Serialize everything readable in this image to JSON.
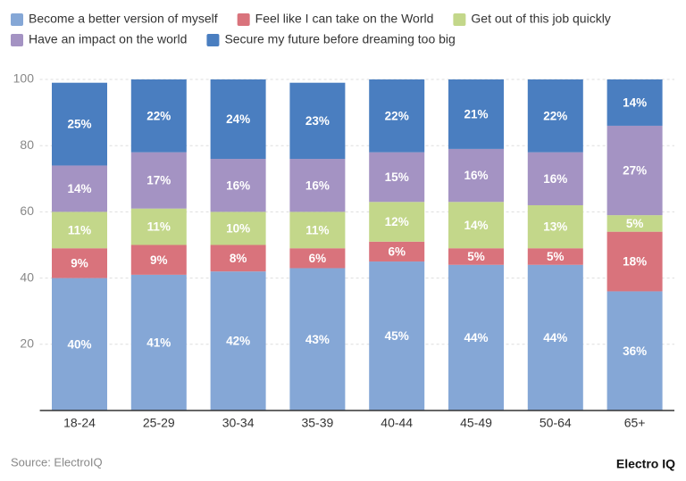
{
  "chart_data": {
    "type": "stacked_bar",
    "categories": [
      "18-24",
      "25-29",
      "30-34",
      "35-39",
      "40-44",
      "45-49",
      "50-64",
      "65+"
    ],
    "series": [
      {
        "name": "Become a better version of myself",
        "color": "#85a7d6",
        "values": [
          40,
          41,
          42,
          43,
          45,
          44,
          44,
          36
        ],
        "value_labels": [
          "40%",
          "41%",
          "42%",
          "43%",
          "45%",
          "44%",
          "44%",
          "36%"
        ]
      },
      {
        "name": "Feel like I can take on the World",
        "color": "#d9737c",
        "values": [
          9,
          9,
          8,
          6,
          6,
          5,
          5,
          18
        ],
        "value_labels": [
          "9%",
          "9%",
          "8%",
          "6%",
          "6%",
          "5%",
          "5%",
          "18%"
        ]
      },
      {
        "name": "Get out of this job quickly",
        "color": "#c3d78a",
        "values": [
          11,
          11,
          10,
          11,
          12,
          14,
          13,
          5
        ],
        "value_labels": [
          "11%",
          "11%",
          "10%",
          "11%",
          "12%",
          "14%",
          "13%",
          "5%"
        ]
      },
      {
        "name": "Have an impact on the world",
        "color": "#a493c3",
        "values": [
          14,
          17,
          16,
          16,
          15,
          16,
          16,
          27
        ],
        "value_labels": [
          "14%",
          "17%",
          "16%",
          "16%",
          "15%",
          "16%",
          "16%",
          "27%"
        ]
      },
      {
        "name": "Secure my future before dreaming too big",
        "color": "#4a7ec0",
        "values": [
          25,
          22,
          24,
          23,
          22,
          21,
          22,
          14
        ],
        "value_labels": [
          "25%",
          "22%",
          "24%",
          "23%",
          "22%",
          "21%",
          "22%",
          "14%"
        ]
      }
    ],
    "ylim": [
      0,
      100
    ],
    "yticks": [
      20,
      40,
      60,
      80,
      100
    ],
    "grid": true,
    "source": "Source: ElectroIQ",
    "watermark": "Electro IQ"
  }
}
